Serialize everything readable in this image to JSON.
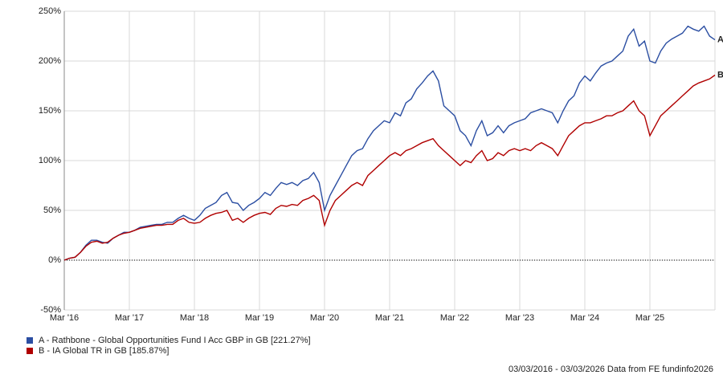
{
  "chart_data": {
    "type": "line",
    "categories": [
      "Mar '16",
      null,
      null,
      null,
      null,
      null,
      null,
      null,
      null,
      null,
      null,
      null,
      "Mar '17",
      null,
      null,
      null,
      null,
      null,
      null,
      null,
      null,
      null,
      null,
      null,
      "Mar '18",
      null,
      null,
      null,
      null,
      null,
      null,
      null,
      null,
      null,
      null,
      null,
      "Mar '19",
      null,
      null,
      null,
      null,
      null,
      null,
      null,
      null,
      null,
      null,
      null,
      "Mar '20",
      null,
      null,
      null,
      null,
      null,
      null,
      null,
      null,
      null,
      null,
      null,
      "Mar '21",
      null,
      null,
      null,
      null,
      null,
      null,
      null,
      null,
      null,
      null,
      null,
      "Mar '22",
      null,
      null,
      null,
      null,
      null,
      null,
      null,
      null,
      null,
      null,
      null,
      "Mar '23",
      null,
      null,
      null,
      null,
      null,
      null,
      null,
      null,
      null,
      null,
      null,
      "Mar '24",
      null,
      null,
      null,
      null,
      null,
      null,
      null,
      null,
      null,
      null,
      null,
      "Mar '25",
      null,
      null,
      null,
      null,
      null,
      null,
      null,
      null,
      null,
      null,
      null,
      null
    ],
    "series": [
      {
        "name": "A - Rathbone - Global Opportunities Fund I Acc GBP in GB [221.27%]",
        "label": "A",
        "color": "#2b4ea2",
        "values": [
          0,
          2,
          3,
          8,
          15,
          20,
          20,
          18,
          17,
          22,
          25,
          28,
          28,
          30,
          33,
          34,
          35,
          36,
          36,
          38,
          38,
          42,
          45,
          42,
          40,
          45,
          52,
          55,
          58,
          65,
          68,
          58,
          57,
          50,
          55,
          58,
          62,
          68,
          65,
          72,
          78,
          76,
          78,
          75,
          80,
          82,
          88,
          78,
          50,
          65,
          75,
          85,
          95,
          105,
          110,
          112,
          122,
          130,
          135,
          140,
          138,
          148,
          145,
          158,
          162,
          172,
          178,
          185,
          190,
          180,
          155,
          150,
          145,
          130,
          125,
          115,
          130,
          140,
          125,
          128,
          135,
          128,
          135,
          138,
          140,
          142,
          148,
          150,
          152,
          150,
          148,
          138,
          150,
          160,
          165,
          178,
          185,
          180,
          188,
          195,
          198,
          200,
          205,
          210,
          225,
          232,
          215,
          220,
          200,
          198,
          210,
          218,
          222,
          225,
          228,
          235,
          232,
          230,
          235,
          225,
          221.27
        ]
      },
      {
        "name": "B - IA Global TR in GB [185.87%]",
        "label": "B",
        "color": "#b00000",
        "values": [
          0,
          2,
          3,
          8,
          14,
          18,
          19,
          17,
          18,
          22,
          25,
          27,
          28,
          30,
          32,
          33,
          34,
          35,
          35,
          36,
          36,
          40,
          42,
          38,
          37,
          38,
          42,
          45,
          47,
          48,
          50,
          40,
          42,
          38,
          42,
          45,
          47,
          48,
          46,
          52,
          55,
          54,
          56,
          55,
          60,
          62,
          65,
          60,
          35,
          50,
          60,
          65,
          70,
          75,
          78,
          75,
          85,
          90,
          95,
          100,
          105,
          108,
          105,
          110,
          112,
          115,
          118,
          120,
          122,
          115,
          110,
          105,
          100,
          95,
          100,
          98,
          105,
          110,
          100,
          102,
          108,
          105,
          110,
          112,
          110,
          112,
          110,
          115,
          118,
          115,
          112,
          105,
          115,
          125,
          130,
          135,
          138,
          138,
          140,
          142,
          145,
          145,
          148,
          150,
          155,
          160,
          150,
          145,
          125,
          135,
          145,
          150,
          155,
          160,
          165,
          170,
          175,
          178,
          180,
          182,
          185.87
        ]
      }
    ],
    "ylim": [
      -50,
      250
    ],
    "yticks": [
      {
        "value": -50,
        "label": "-50%"
      },
      {
        "value": 0,
        "label": "0%"
      },
      {
        "value": 50,
        "label": "50%"
      },
      {
        "value": 100,
        "label": "100%"
      },
      {
        "value": 150,
        "label": "150%"
      },
      {
        "value": 200,
        "label": "200%"
      },
      {
        "value": 250,
        "label": "250%"
      }
    ],
    "grid": true,
    "source": "03/03/2016 - 03/03/2026 Data from FE fundinfo2026"
  }
}
